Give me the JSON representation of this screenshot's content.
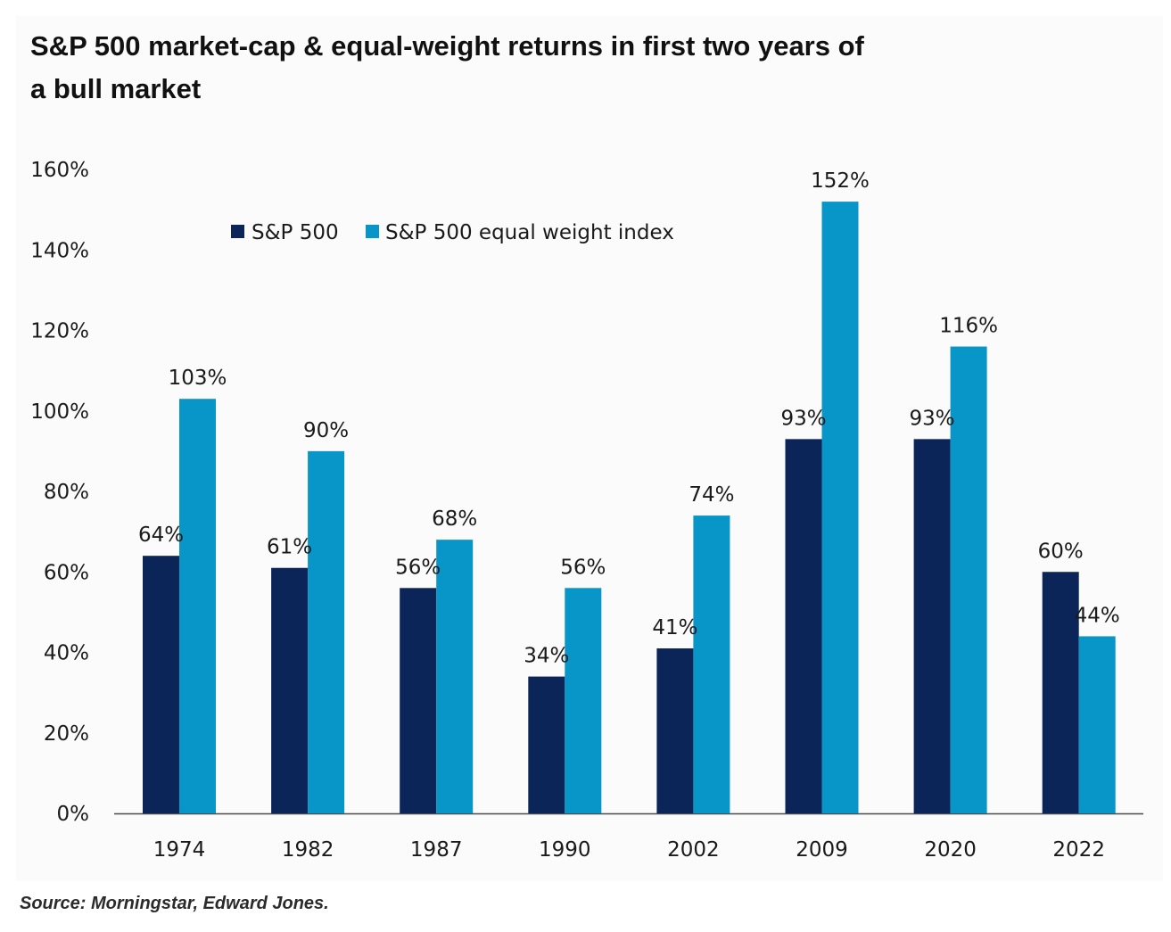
{
  "source": "Source: Morningstar, Edward Jones.",
  "colors": {
    "sp500": "#0b2559",
    "equal_weight": "#0895c8",
    "axis": "#4a4a4a",
    "text": "#1a1a1a"
  },
  "chart_data": {
    "type": "bar",
    "title": "S&P 500 market-cap & equal-weight returns in first two years of a bull market",
    "title_lines": [
      "S&P 500 market-cap & equal-weight returns in first two years of",
      "a bull market"
    ],
    "xlabel": "",
    "ylabel": "",
    "categories": [
      "1974",
      "1982",
      "1987",
      "1990",
      "2002",
      "2009",
      "2020",
      "2022"
    ],
    "series": [
      {
        "name": "S&P 500",
        "values": [
          64,
          61,
          56,
          34,
          41,
          93,
          93,
          60
        ],
        "labels": [
          "64%",
          "61%",
          "56%",
          "34%",
          "41%",
          "93%",
          "93%",
          "60%"
        ]
      },
      {
        "name": "S&P 500 equal weight index",
        "values": [
          103,
          90,
          68,
          56,
          74,
          152,
          116,
          44
        ],
        "labels": [
          "103%",
          "90%",
          "68%",
          "56%",
          "74%",
          "152%",
          "116%",
          "44%"
        ]
      }
    ],
    "ylim": [
      0,
      160
    ],
    "yticks": [
      0,
      20,
      40,
      60,
      80,
      100,
      120,
      140,
      160
    ],
    "ytick_labels": [
      "0%",
      "20%",
      "40%",
      "60%",
      "80%",
      "100%",
      "120%",
      "140%",
      "160%"
    ],
    "grid": false,
    "legend": "top-left"
  }
}
